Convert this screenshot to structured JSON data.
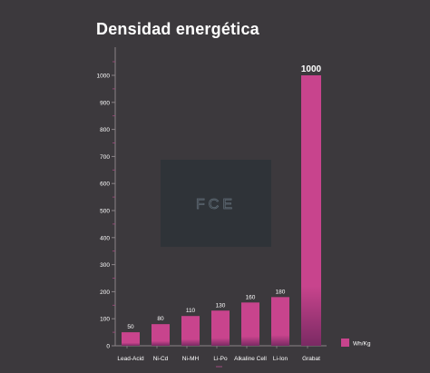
{
  "chart_data": {
    "type": "bar",
    "title": "Densidad energética",
    "categories": [
      "Lead-Acid",
      "Ni-Cd",
      "Ni-MH",
      "Li-Po",
      "Alkaline Cell",
      "Li-Ion",
      "Grabat"
    ],
    "values": [
      50,
      80,
      110,
      130,
      160,
      180,
      1000
    ],
    "value_labels": [
      "50",
      "80",
      "110",
      "130",
      "160",
      "180",
      "1000"
    ],
    "yticks": [
      0,
      100,
      200,
      300,
      400,
      500,
      600,
      700,
      800,
      900,
      1000
    ],
    "ytick_labels": [
      "0",
      "100",
      "200",
      "300",
      "400",
      "500",
      "600",
      "700",
      "800",
      "900",
      "1000"
    ],
    "ylim": [
      0,
      1000
    ],
    "xlabel": "",
    "ylabel": "",
    "legend": {
      "position": "bottom-right",
      "entries": [
        {
          "name": "Wh/Kg",
          "color": "#c8448d"
        }
      ]
    },
    "series": [
      {
        "name": "Wh/Kg",
        "values": [
          50,
          80,
          110,
          130,
          160,
          180,
          1000
        ],
        "color": "#c8448d"
      }
    ],
    "grid": false,
    "watermark": "FCE"
  },
  "colors": {
    "background": "#3c393d",
    "bar": "#c8448d",
    "bar_dark": "#7a2a63",
    "axis": "#8a8488",
    "text": "#ffffff",
    "watermark_box": "#2f3338",
    "watermark_text": "#5a6670"
  }
}
